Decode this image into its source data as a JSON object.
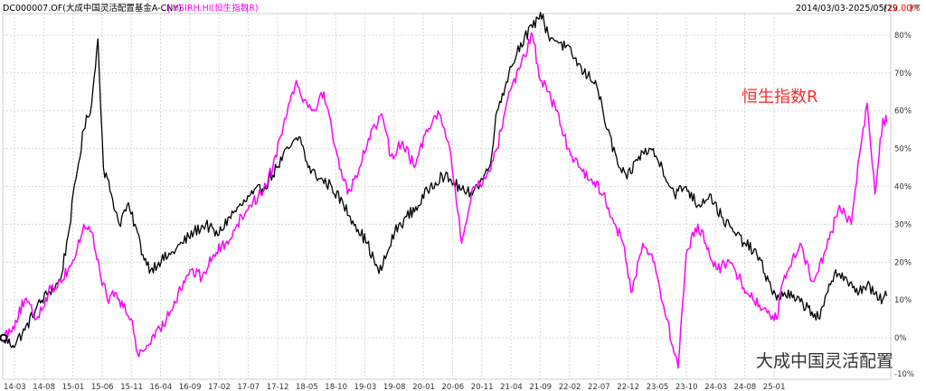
{
  "header": {
    "fund_label": "DC000007.OF(大成中国灵活配置基金A-CNY)",
    "separator": "|",
    "index_label": "HSIRH.HI(恒生指数R)",
    "range_text": "2014/03/03-2025/05/29",
    "range_pct": "12.00%",
    "range_open": "(",
    "range_close": ")",
    "dropdown_icon": "triangle-down-icon"
  },
  "colors": {
    "fund": "#000000",
    "index": "#ff00ff",
    "grid": "#d8d8d8",
    "range_pct": "#ff0000",
    "annotation_index": "#ff2b2b",
    "watermark": "#333333"
  },
  "annotations": {
    "index_name": "恒生指数R",
    "fund_name": "大成中国灵活配置"
  },
  "chart_data": {
    "type": "line",
    "ylim": [
      -10,
      85
    ],
    "y_tick_values": [
      0,
      10,
      20,
      30,
      40,
      50,
      60,
      70,
      80
    ],
    "y_tick_labels": [
      "0%",
      "10%",
      "20%",
      "30%",
      "40%",
      "50%",
      "60%",
      "70%",
      "80%"
    ],
    "y_bottom_label": "-10%",
    "x_tick_labels": [
      "14-03",
      "14-08",
      "15-01",
      "15-06",
      "15-11",
      "16-04",
      "16-09",
      "17-02",
      "17-07",
      "17-12",
      "18-05",
      "18-10",
      "19-03",
      "19-08",
      "20-01",
      "20-06",
      "20-11",
      "21-04",
      "21-09",
      "22-02",
      "22-07",
      "22-12",
      "23-05",
      "23-10",
      "24-03",
      "24-08",
      "25-01"
    ],
    "x_range": [
      "2014-03",
      "2025-05"
    ],
    "grid": true,
    "series": [
      {
        "name": "DC000007.OF(大成中国灵活配置基金A-CNY)",
        "x": [
          2014.17,
          2014.3,
          2014.45,
          2014.6,
          2014.75,
          2014.9,
          2015.0,
          2015.1,
          2015.2,
          2015.3,
          2015.38,
          2015.45,
          2015.55,
          2015.65,
          2015.75,
          2015.85,
          2015.95,
          2016.05,
          2016.15,
          2016.3,
          2016.45,
          2016.6,
          2016.75,
          2016.9,
          2017.05,
          2017.2,
          2017.35,
          2017.5,
          2017.65,
          2017.8,
          2017.95,
          2018.05,
          2018.2,
          2018.35,
          2018.5,
          2018.65,
          2018.8,
          2018.95,
          2019.05,
          2019.15,
          2019.3,
          2019.45,
          2019.6,
          2019.75,
          2019.9,
          2020.05,
          2020.2,
          2020.35,
          2020.45,
          2020.6,
          2020.75,
          2020.9,
          2021.0,
          2021.1,
          2021.25,
          2021.4,
          2021.55,
          2021.7,
          2021.85,
          2022.0,
          2022.1,
          2022.25,
          2022.4,
          2022.55,
          2022.7,
          2022.85,
          2023.0,
          2023.15,
          2023.3,
          2023.45,
          2023.6,
          2023.75,
          2023.9,
          2024.0,
          2024.1,
          2024.25,
          2024.4,
          2024.55,
          2024.65,
          2024.75,
          2024.9,
          2025.0,
          2025.15,
          2025.3,
          2025.4
        ],
        "y": [
          0,
          -2,
          2,
          8,
          12,
          15,
          27,
          42,
          55,
          62,
          79,
          45,
          38,
          30,
          35,
          30,
          22,
          18,
          20,
          22,
          25,
          28,
          30,
          27,
          32,
          35,
          38,
          40,
          45,
          50,
          53,
          45,
          42,
          40,
          35,
          30,
          25,
          17,
          22,
          28,
          32,
          35,
          40,
          43,
          41,
          38,
          40,
          45,
          60,
          70,
          78,
          82,
          86,
          80,
          78,
          75,
          70,
          68,
          55,
          45,
          42,
          48,
          50,
          45,
          38,
          40,
          35,
          38,
          32,
          28,
          25,
          22,
          15,
          10,
          12,
          10,
          8,
          5,
          12,
          18,
          15,
          12,
          14,
          10,
          11
        ],
        "color": "#000000"
      },
      {
        "name": "HSIRH.HI(恒生指数R)",
        "x": [
          2014.17,
          2014.3,
          2014.45,
          2014.6,
          2014.75,
          2014.9,
          2015.0,
          2015.1,
          2015.2,
          2015.3,
          2015.4,
          2015.5,
          2015.6,
          2015.7,
          2015.8,
          2015.9,
          2016.0,
          2016.1,
          2016.25,
          2016.4,
          2016.55,
          2016.7,
          2016.85,
          2017.0,
          2017.15,
          2017.3,
          2017.45,
          2017.6,
          2017.75,
          2017.9,
          2018.0,
          2018.1,
          2018.25,
          2018.4,
          2018.55,
          2018.7,
          2018.85,
          2019.0,
          2019.1,
          2019.25,
          2019.4,
          2019.55,
          2019.7,
          2019.85,
          2020.0,
          2020.05,
          2020.15,
          2020.3,
          2020.45,
          2020.6,
          2020.75,
          2020.9,
          2021.0,
          2021.1,
          2021.2,
          2021.35,
          2021.5,
          2021.65,
          2021.8,
          2021.95,
          2022.05,
          2022.15,
          2022.3,
          2022.45,
          2022.6,
          2022.75,
          2022.85,
          2023.0,
          2023.1,
          2023.25,
          2023.4,
          2023.55,
          2023.7,
          2023.85,
          2024.0,
          2024.05,
          2024.15,
          2024.3,
          2024.45,
          2024.6,
          2024.7,
          2024.8,
          2024.95,
          2025.05,
          2025.15,
          2025.25,
          2025.35,
          2025.4
        ],
        "y": [
          0,
          3,
          10,
          5,
          12,
          15,
          18,
          22,
          30,
          28,
          18,
          10,
          12,
          8,
          5,
          -5,
          -2,
          0,
          5,
          12,
          18,
          16,
          22,
          25,
          30,
          35,
          38,
          45,
          58,
          68,
          63,
          60,
          65,
          50,
          38,
          45,
          55,
          58,
          48,
          52,
          45,
          55,
          60,
          50,
          25,
          30,
          40,
          42,
          50,
          65,
          72,
          80,
          68,
          65,
          60,
          50,
          45,
          42,
          38,
          30,
          25,
          12,
          25,
          20,
          5,
          -8,
          22,
          30,
          25,
          18,
          20,
          15,
          10,
          8,
          5,
          12,
          18,
          25,
          15,
          22,
          28,
          35,
          30,
          48,
          62,
          38,
          58,
          57
        ],
        "color": "#ff00ff"
      }
    ]
  }
}
